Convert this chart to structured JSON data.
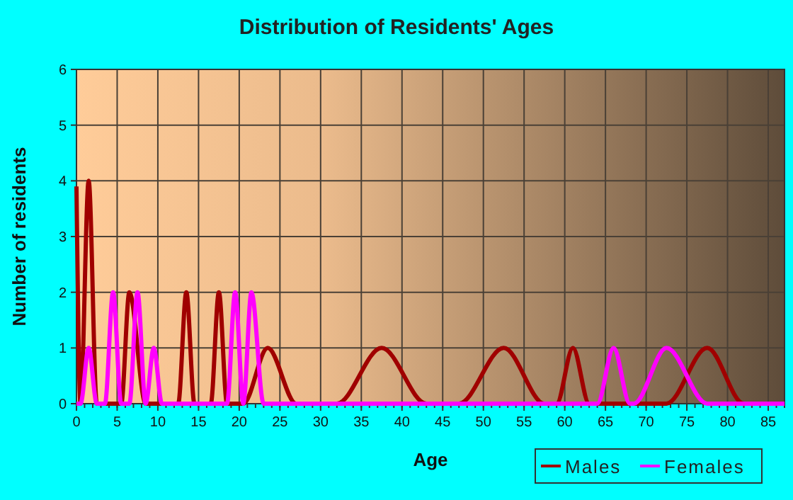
{
  "chart_data": {
    "type": "line",
    "title": "Distribution of Residents' Ages",
    "xlabel": "Age",
    "ylabel": "Number of residents",
    "xlim": [
      0,
      87
    ],
    "xticks": [
      0,
      5,
      10,
      15,
      20,
      25,
      30,
      35,
      40,
      45,
      50,
      55,
      60,
      65,
      70,
      75,
      80,
      85
    ],
    "ylim": [
      0,
      6
    ],
    "yticks": [
      0,
      1,
      2,
      3,
      4,
      5,
      6
    ],
    "grid": true,
    "legend": "bottom right",
    "marker": "none",
    "line_style": "solid",
    "series": [
      {
        "name": "Males",
        "color": "#a00000",
        "x": [
          0,
          0.5,
          1.5,
          2.5,
          5.5,
          6.5,
          8.5,
          12.5,
          13.5,
          14.5,
          16.5,
          17.5,
          18.5,
          20.5,
          23.5,
          27,
          32,
          37.5,
          43,
          47,
          52.5,
          57.5,
          59,
          61,
          63,
          72.5,
          77.5,
          82,
          87
        ],
        "values": [
          3.9,
          0,
          4,
          0,
          0,
          2,
          0,
          0,
          2,
          0,
          0,
          2,
          0,
          0,
          1,
          0,
          0,
          1,
          0,
          0,
          1,
          0,
          0,
          1,
          0,
          0,
          1,
          0,
          0
        ]
      },
      {
        "name": "Females",
        "color": "#ff00ff",
        "x": [
          0,
          0.5,
          1.5,
          2.5,
          3.5,
          4.5,
          5.5,
          6.5,
          7.5,
          8.5,
          9.5,
          10.5,
          18.5,
          19.5,
          20.5,
          21.5,
          23,
          64,
          66,
          68,
          68.5,
          72.5,
          77.5,
          87
        ],
        "values": [
          0,
          0,
          1,
          0,
          0,
          2,
          0,
          0,
          2,
          0,
          1,
          0,
          0,
          2,
          0,
          2,
          0,
          0,
          1,
          0,
          0,
          1,
          0,
          0
        ]
      }
    ]
  }
}
